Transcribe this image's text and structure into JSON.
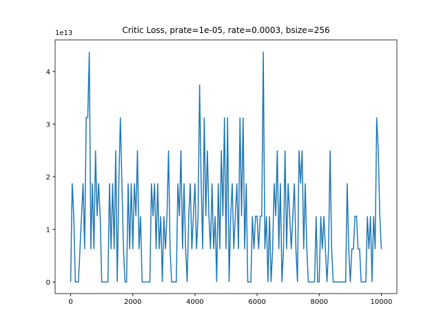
{
  "chart_data": {
    "type": "line",
    "title": "Critic Loss, prate=1e-05, rate=0.0003, bsize=256",
    "y_offset_label": "1e13",
    "x": [
      0,
      50,
      100,
      150,
      200,
      250,
      300,
      350,
      400,
      450,
      500,
      550,
      600,
      650,
      700,
      750,
      800,
      850,
      900,
      950,
      1000,
      1050,
      1100,
      1150,
      1200,
      1250,
      1300,
      1350,
      1400,
      1450,
      1500,
      1550,
      1600,
      1650,
      1700,
      1750,
      1800,
      1850,
      1900,
      1950,
      2000,
      2050,
      2100,
      2150,
      2200,
      2250,
      2300,
      2350,
      2400,
      2450,
      2500,
      2550,
      2600,
      2650,
      2700,
      2750,
      2800,
      2850,
      2900,
      2950,
      3000,
      3050,
      3100,
      3150,
      3200,
      3250,
      3300,
      3350,
      3400,
      3450,
      3500,
      3550,
      3600,
      3650,
      3700,
      3750,
      3800,
      3850,
      3900,
      3950,
      4000,
      4050,
      4100,
      4150,
      4200,
      4250,
      4300,
      4350,
      4400,
      4450,
      4500,
      4550,
      4600,
      4650,
      4700,
      4750,
      4800,
      4850,
      4900,
      4950,
      5000,
      5050,
      5100,
      5150,
      5200,
      5250,
      5300,
      5350,
      5400,
      5450,
      5500,
      5550,
      5600,
      5650,
      5700,
      5750,
      5800,
      5850,
      5900,
      5950,
      6000,
      6050,
      6100,
      6150,
      6200,
      6250,
      6300,
      6350,
      6400,
      6450,
      6500,
      6550,
      6600,
      6650,
      6700,
      6750,
      6800,
      6850,
      6900,
      6950,
      7000,
      7050,
      7100,
      7150,
      7200,
      7250,
      7300,
      7350,
      7400,
      7450,
      7500,
      7550,
      7600,
      7650,
      7700,
      7750,
      7800,
      7850,
      7900,
      7950,
      8000,
      8050,
      8100,
      8150,
      8200,
      8250,
      8300,
      8350,
      8400,
      8450,
      8500,
      8550,
      8600,
      8650,
      8700,
      8750,
      8800,
      8850,
      8900,
      8950,
      9000,
      9050,
      9100,
      9150,
      9200,
      9250,
      9300,
      9350,
      9400,
      9450,
      9500,
      9550,
      9600,
      9650,
      9700,
      9750,
      9800,
      9850,
      9900,
      9950,
      10000
    ],
    "series": [
      {
        "color": "#1f77b4",
        "values": [
          0,
          1.875,
          1.25,
          0,
          0,
          0,
          0.625,
          1.25,
          1.875,
          0.625,
          3.125,
          3.125,
          4.375,
          0.625,
          1.875,
          0.625,
          2.5,
          1.25,
          1.875,
          1.25,
          0,
          0,
          0,
          0,
          0,
          1.875,
          0.625,
          1.875,
          0.625,
          2.5,
          0,
          1.875,
          3.125,
          1.875,
          0.625,
          0,
          0,
          1.875,
          0.625,
          1.875,
          0.625,
          1.875,
          1.25,
          2.5,
          0.625,
          1.25,
          0,
          0,
          0,
          0,
          0,
          0,
          1.875,
          1.25,
          1.875,
          0.625,
          1.875,
          0.625,
          1.25,
          0,
          1.25,
          0.625,
          1.25,
          2.5,
          0.625,
          0,
          0,
          0,
          0,
          1.875,
          1.25,
          2.5,
          0.625,
          1.875,
          0.625,
          0,
          1.25,
          1.875,
          0.625,
          1.25,
          1.875,
          0.625,
          1.25,
          3.75,
          1.875,
          0.625,
          3.125,
          1.25,
          2.5,
          1.25,
          0.625,
          1.875,
          0.625,
          1.25,
          0,
          1.875,
          0.625,
          2.5,
          1.25,
          3.125,
          0.625,
          3.125,
          0,
          1.25,
          1.875,
          0.625,
          1.25,
          1.875,
          0.625,
          3.125,
          1.25,
          3.125,
          0.625,
          1.875,
          0,
          0,
          0,
          1.25,
          0.625,
          1.25,
          1.25,
          0.625,
          1.25,
          1.25,
          4.375,
          0.625,
          1.25,
          0,
          1.25,
          0,
          0.625,
          1.875,
          1.25,
          2.5,
          0.625,
          1.875,
          0,
          0.625,
          2.5,
          0.625,
          1.875,
          1.25,
          0.625,
          1.25,
          1.875,
          0.625,
          0,
          2.5,
          1.875,
          2.5,
          0.625,
          1.875,
          0.625,
          0,
          0,
          0,
          0,
          0,
          1.25,
          0,
          0,
          1.25,
          0.625,
          1.25,
          0.625,
          0,
          0.625,
          2.5,
          0.625,
          0,
          0,
          0,
          0,
          0,
          0,
          0,
          0,
          0,
          1.875,
          0.625,
          0,
          0.625,
          0.625,
          1.25,
          1.25,
          0.625,
          0.625,
          0,
          0,
          0,
          0,
          1.25,
          0.625,
          1.25,
          0,
          1.25,
          0.625,
          3.125,
          2.5,
          1.25,
          0.625
        ]
      }
    ],
    "xlim": [
      -500,
      10500
    ],
    "xticks": [
      0,
      2000,
      4000,
      6000,
      8000,
      10000
    ],
    "ylim": [
      -0.22,
      4.6
    ],
    "yticks": [
      0,
      1,
      2,
      3,
      4
    ]
  }
}
